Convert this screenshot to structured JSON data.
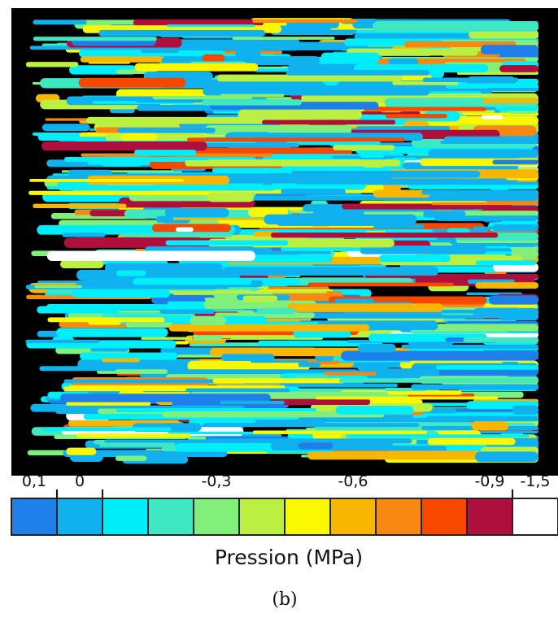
{
  "colorbar": {
    "colors": [
      "#1c7fea",
      "#0fb2ee",
      "#00eefa",
      "#3ee8c2",
      "#80f07a",
      "#bcf040",
      "#faf800",
      "#f8b600",
      "#f88812",
      "#f84800",
      "#ae0f3c",
      "#ffffff"
    ],
    "labels": [
      "0,1",
      "0",
      "-0,3",
      "-0,6",
      "-0,9",
      "-1,5"
    ],
    "title": "Pression (MPa)"
  },
  "caption": "(b)"
}
